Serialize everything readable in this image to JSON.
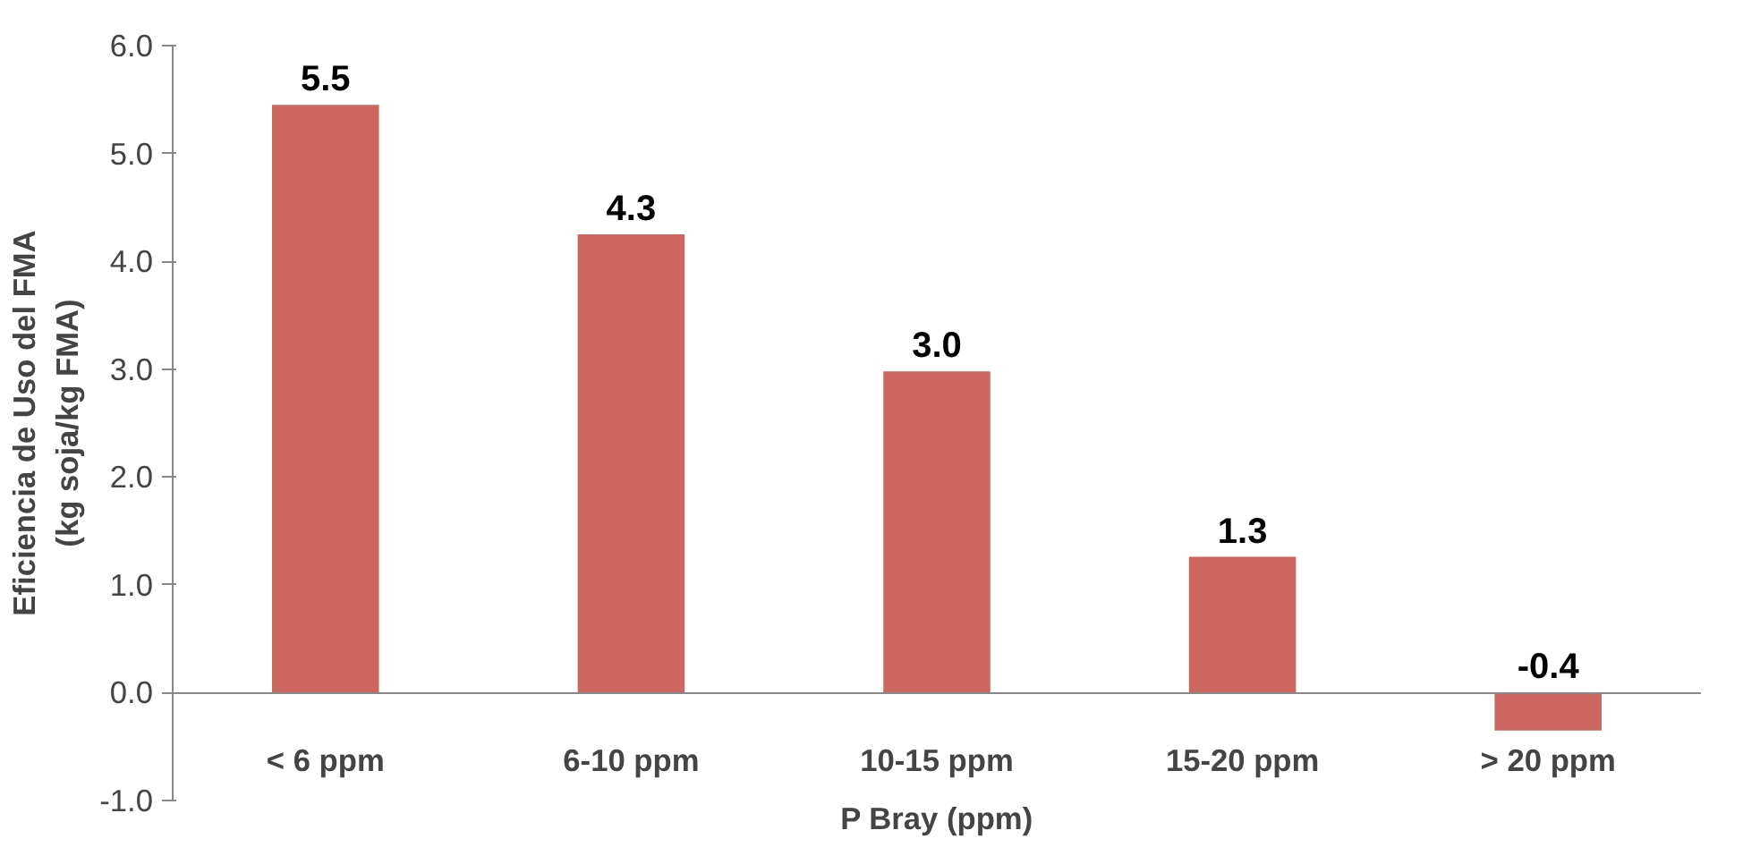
{
  "chart_data": {
    "type": "bar",
    "categories": [
      "< 6 ppm",
      "6-10 ppm",
      "10-15 ppm",
      "15-20 ppm",
      "> 20 ppm"
    ],
    "values": [
      5.45,
      4.25,
      2.98,
      1.26,
      -0.35
    ],
    "value_labels": [
      "5.5",
      "4.3",
      "3.0",
      "1.3",
      "-0.4"
    ],
    "color": "#cd6660",
    "xlabel": "P Bray (ppm)",
    "ylabel": "Eficiencia de Uso del FMA\n(kg soja/kg FMA)",
    "ylim": [
      -1,
      6
    ],
    "yticks": [
      {
        "value": -1,
        "label": "-1.0"
      },
      {
        "value": 0,
        "label": "0.0"
      },
      {
        "value": 1,
        "label": "1.0"
      },
      {
        "value": 2,
        "label": "2.0"
      },
      {
        "value": 3,
        "label": "3.0"
      },
      {
        "value": 4,
        "label": "4.0"
      },
      {
        "value": 5,
        "label": "5.0"
      },
      {
        "value": 6,
        "label": "6.0"
      }
    ],
    "grid": false
  }
}
